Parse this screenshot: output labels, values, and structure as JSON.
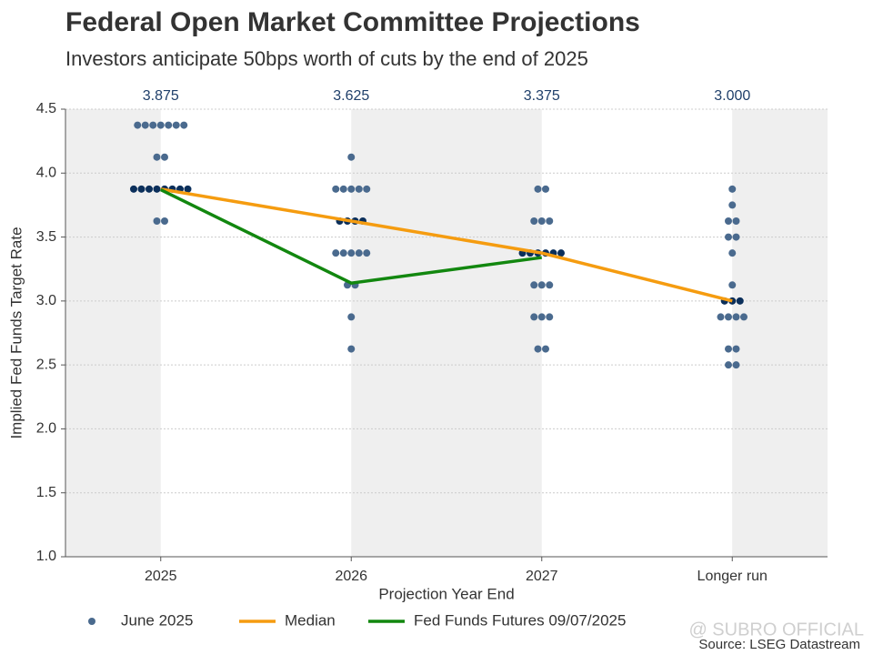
{
  "chart_data": {
    "type": "dot",
    "title": "Federal Open Market Committee Projections",
    "subtitle": "Investors anticipate 50bps worth of cuts by the end of 2025",
    "x_label": "Projection Year End",
    "y_label": "Implied Fed Funds Target Rate",
    "source": "Source: LSEG Datastream",
    "watermark": "@ SUBRO OFFICIAL",
    "categories": [
      "2025",
      "2026",
      "2027",
      "Longer run"
    ],
    "ylim": [
      1.0,
      4.5
    ],
    "yticks": [
      {
        "value": 1.0,
        "label": "1.0"
      },
      1.5,
      {
        "value": 2.0,
        "label": "2.0"
      },
      2.5,
      {
        "value": 3.0,
        "label": "3.0"
      },
      3.5,
      {
        "value": 4.0,
        "label": "4.0"
      },
      4.5
    ],
    "grid": true,
    "series": [
      {
        "name": "June 2025",
        "color": "#4a6a8e",
        "highlight_color": "#0b2f5b",
        "kind": "dots",
        "values": [
          [
            4.375,
            4.375,
            4.375,
            4.375,
            4.375,
            4.375,
            4.375,
            4.125,
            4.125,
            3.875,
            3.875,
            3.875,
            3.875,
            3.875,
            3.875,
            3.875,
            3.875,
            3.625,
            3.625
          ],
          [
            4.125,
            3.875,
            3.875,
            3.875,
            3.875,
            3.875,
            3.625,
            3.625,
            3.625,
            3.625,
            3.375,
            3.375,
            3.375,
            3.375,
            3.375,
            3.125,
            3.125,
            2.875,
            2.625
          ],
          [
            3.875,
            3.875,
            3.625,
            3.625,
            3.625,
            3.375,
            3.375,
            3.375,
            3.375,
            3.375,
            3.375,
            3.125,
            3.125,
            3.125,
            2.875,
            2.875,
            2.875,
            2.625,
            2.625
          ],
          [
            3.875,
            3.75,
            3.625,
            3.625,
            3.5,
            3.5,
            3.375,
            3.125,
            3.0,
            3.0,
            3.0,
            2.875,
            2.875,
            2.875,
            2.875,
            2.625,
            2.625,
            2.5,
            2.5
          ]
        ]
      },
      {
        "name": "Median",
        "color": "#f59c10",
        "kind": "line",
        "values": [
          3.875,
          3.625,
          3.375,
          3.0
        ],
        "value_labels": [
          "3.875",
          "3.625",
          "3.375",
          "3.000"
        ]
      },
      {
        "name": "Fed Funds Futures 09/07/2025",
        "color": "#12870f",
        "kind": "line",
        "values": [
          3.87,
          3.14,
          3.34,
          null
        ]
      }
    ]
  }
}
